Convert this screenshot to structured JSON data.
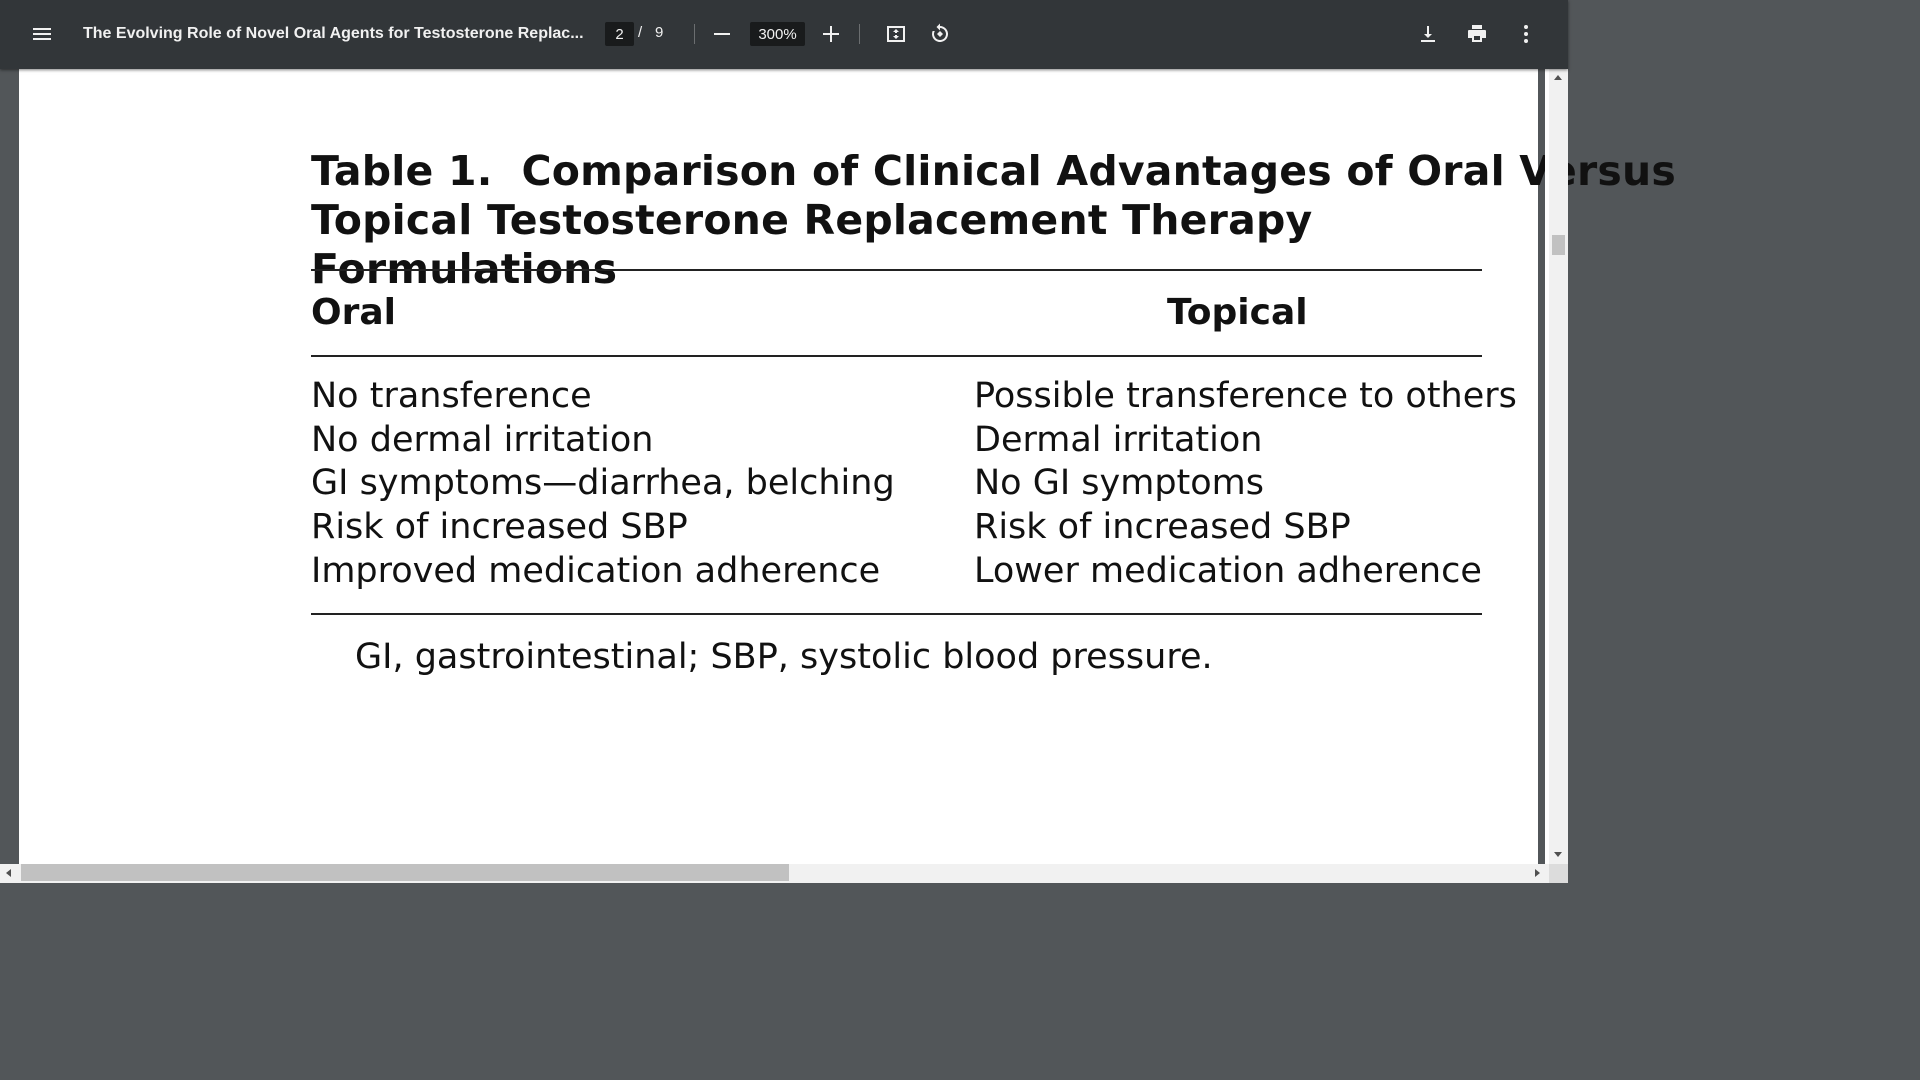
{
  "toolbar": {
    "title": "The Evolving Role of Novel Oral Agents for Testosterone Replac...",
    "page_current": "2",
    "page_separator": "/",
    "page_total": "9",
    "zoom": "300%",
    "icons": [
      "menu-icon",
      "minus-icon",
      "plus-icon",
      "fit-to-page-icon",
      "rotate-icon",
      "download-icon",
      "print-icon",
      "more-vert-icon"
    ]
  },
  "document": {
    "table_title_line1": "Table 1.  Comparison of Clinical Advantages of Oral Versus",
    "table_title_line2": "Topical Testosterone Replacement Therapy Formulations",
    "columns": [
      "Oral",
      "Topical"
    ],
    "rows": [
      [
        "No transference",
        "Possible transference to others"
      ],
      [
        "No dermal irritation",
        "Dermal irritation"
      ],
      [
        "GI symptoms—diarrhea, belching",
        "No GI symptoms"
      ],
      [
        "Risk of increased SBP",
        "Risk of increased SBP"
      ],
      [
        "Improved medication adherence",
        "Lower medication adherence"
      ]
    ],
    "footnote": "GI, gastrointestinal; SBP, systolic blood pressure."
  },
  "scroll": {
    "vertical_position": 0.12,
    "horizontal_position": 0.0
  }
}
